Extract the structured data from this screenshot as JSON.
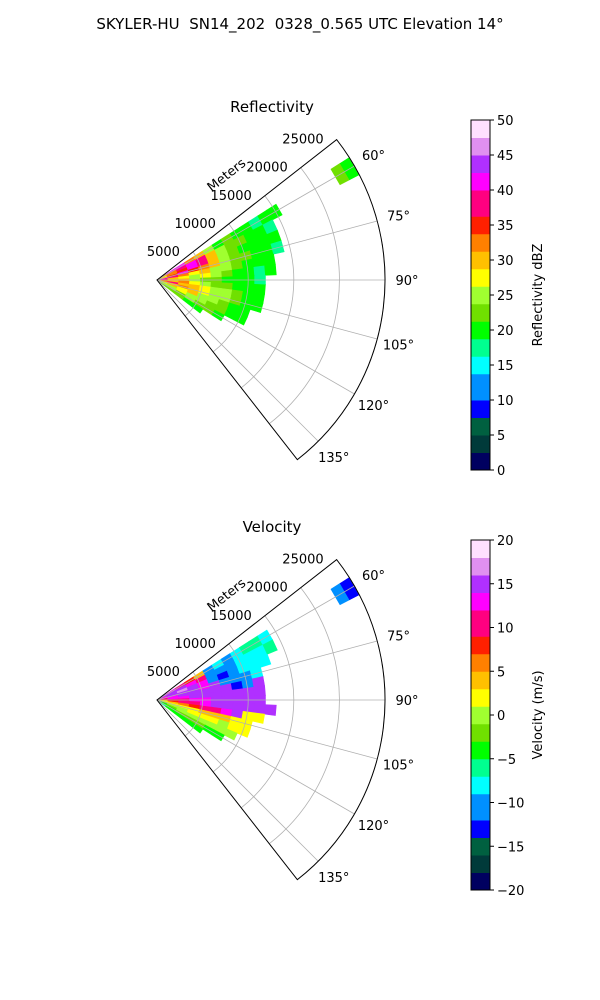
{
  "figure_title": "SKYLER-HU  SN14_202  0328_0.565 UTC Elevation 14°",
  "chart_data": [
    {
      "type": "heatmap",
      "subtype": "polar-sector (radar PPI)",
      "title": "Reflectivity",
      "radial_label": "Meters",
      "radial_ticks": [
        5000,
        10000,
        15000,
        20000,
        25000
      ],
      "radial_tick_labels": [
        "5000",
        "10000",
        "15000",
        "20000",
        "25000"
      ],
      "radial_range": [
        0,
        25000
      ],
      "angle_range_deg": [
        52,
        142
      ],
      "angle_ticks_deg": [
        60,
        75,
        90,
        105,
        120,
        135
      ],
      "angle_tick_labels": [
        "60°",
        "75°",
        "90°",
        "105°",
        "120°",
        "135°"
      ],
      "grid": true,
      "colorbar": {
        "label": "Reflectivity dBZ",
        "range": [
          0,
          50
        ],
        "ticks": [
          0,
          5,
          10,
          15,
          20,
          25,
          30,
          35,
          40,
          45,
          50
        ],
        "tick_labels": [
          "0",
          "5",
          "10",
          "15",
          "20",
          "25",
          "30",
          "35",
          "40",
          "45",
          "50"
        ],
        "position": "right"
      },
      "colorscale": [
        "#000060",
        "#003a3a",
        "#006040",
        "#0000ff",
        "#0090ff",
        "#00ffff",
        "#00ff90",
        "#00ff00",
        "#70e000",
        "#a0ff30",
        "#ffff00",
        "#ffc000",
        "#ff8000",
        "#ff2000",
        "#ff0080",
        "#ff00ff",
        "#b030ff",
        "#e090f0",
        "#ffe0ff"
      ],
      "rays": [
        {
          "angle": 60,
          "values": [
            35,
            40,
            40,
            32,
            30,
            25,
            20,
            22,
            20,
            20,
            18,
            20,
            20,
            null,
            null,
            null,
            null,
            null,
            null,
            22,
            20
          ]
        },
        {
          "angle": 65,
          "values": [
            30,
            33,
            38,
            40,
            37,
            30,
            25,
            22,
            22,
            20,
            20,
            18,
            null,
            null,
            null,
            null,
            null,
            null,
            null,
            null,
            null
          ]
        },
        {
          "angle": 70,
          "values": [
            28,
            34,
            36,
            40,
            38,
            30,
            24,
            22,
            20,
            20,
            20,
            20,
            null,
            null,
            null,
            null,
            null,
            null,
            null,
            null,
            null
          ]
        },
        {
          "angle": 75,
          "values": [
            33,
            36,
            40,
            36,
            34,
            30,
            26,
            22,
            22,
            20,
            20,
            18,
            null,
            null,
            null,
            null,
            null,
            null,
            null,
            null,
            null
          ]
        },
        {
          "angle": 80,
          "values": [
            35,
            38,
            33,
            28,
            30,
            24,
            24,
            22,
            20,
            20,
            20,
            null,
            null,
            null,
            null,
            null,
            null,
            null,
            null,
            null,
            null
          ]
        },
        {
          "angle": 85,
          "values": [
            40,
            30,
            28,
            26,
            28,
            25,
            22,
            20,
            20,
            18,
            20,
            null,
            null,
            null,
            null,
            null,
            null,
            null,
            null,
            null,
            null
          ]
        },
        {
          "angle": 90,
          "values": [
            35,
            30,
            30,
            25,
            22,
            22,
            20,
            20,
            20,
            18,
            null,
            null,
            null,
            null,
            null,
            null,
            null,
            null,
            null,
            null,
            null
          ]
        },
        {
          "angle": 95,
          "values": [
            34,
            30,
            32,
            28,
            25,
            22,
            22,
            20,
            20,
            20,
            null,
            null,
            null,
            null,
            null,
            null,
            null,
            null,
            null,
            null,
            null
          ]
        },
        {
          "angle": 100,
          "values": [
            32,
            38,
            30,
            30,
            28,
            25,
            24,
            22,
            20,
            20,
            null,
            null,
            null,
            null,
            null,
            null,
            null,
            null,
            null,
            null,
            null
          ]
        },
        {
          "angle": 105,
          "values": [
            30,
            30,
            34,
            30,
            28,
            26,
            24,
            22,
            20,
            20,
            null,
            null,
            null,
            null,
            null,
            null,
            null,
            null,
            null,
            null,
            null
          ]
        },
        {
          "angle": 110,
          "values": [
            28,
            30,
            28,
            30,
            26,
            24,
            22,
            20,
            20,
            null,
            null,
            null,
            null,
            null,
            null,
            null,
            null,
            null,
            null,
            null,
            null
          ]
        },
        {
          "angle": 115,
          "values": [
            26,
            26,
            28,
            26,
            24,
            22,
            22,
            20,
            20,
            null,
            null,
            null,
            null,
            null,
            null,
            null,
            null,
            null,
            null,
            null,
            null
          ]
        },
        {
          "angle": 120,
          "values": [
            24,
            24,
            22,
            24,
            22,
            22,
            20,
            null,
            null,
            null,
            null,
            null,
            null,
            null,
            null,
            null,
            null,
            null,
            null,
            null,
            null
          ]
        },
        {
          "angle": 125,
          "values": [
            22,
            22,
            22,
            20,
            20,
            null,
            null,
            null,
            null,
            null,
            null,
            null,
            null,
            null,
            null,
            null,
            null,
            null,
            null,
            null,
            null
          ]
        }
      ]
    },
    {
      "type": "heatmap",
      "subtype": "polar-sector (radar PPI)",
      "title": "Velocity",
      "radial_label": "Meters",
      "radial_ticks": [
        5000,
        10000,
        15000,
        20000,
        25000
      ],
      "radial_tick_labels": [
        "5000",
        "10000",
        "15000",
        "20000",
        "25000"
      ],
      "radial_range": [
        0,
        25000
      ],
      "angle_range_deg": [
        52,
        142
      ],
      "angle_ticks_deg": [
        60,
        75,
        90,
        105,
        120,
        135
      ],
      "angle_tick_labels": [
        "60°",
        "75°",
        "90°",
        "105°",
        "120°",
        "135°"
      ],
      "grid": true,
      "colorbar": {
        "label": "Velocity (m/s)",
        "range": [
          -20,
          20
        ],
        "ticks": [
          -20,
          -15,
          -10,
          -5,
          0,
          5,
          10,
          15,
          20
        ],
        "tick_labels": [
          "−20",
          "−15",
          "−10",
          "−5",
          "0",
          "5",
          "10",
          "15",
          "20"
        ],
        "position": "right"
      },
      "colorscale": [
        "#000060",
        "#003a3a",
        "#006040",
        "#0000ff",
        "#0090ff",
        "#00ffff",
        "#00ff90",
        "#00ff00",
        "#70e000",
        "#a0ff30",
        "#ffff00",
        "#ffc000",
        "#ff8000",
        "#ff2000",
        "#ff0080",
        "#ff00ff",
        "#b030ff",
        "#e090f0",
        "#ffe0ff"
      ],
      "rays": [
        {
          "angle": 60,
          "values": [
            14,
            12,
            10,
            8,
            5,
            -10,
            -9,
            -10,
            -8,
            -6,
            -7,
            -8,
            null,
            null,
            null,
            null,
            null,
            null,
            null,
            -11,
            -12
          ]
        },
        {
          "angle": 65,
          "values": [
            14,
            15,
            14,
            12,
            10,
            -10,
            -11,
            -10,
            -8,
            -8,
            -8,
            -6,
            null,
            null,
            null,
            null,
            null,
            null,
            null,
            null,
            null
          ]
        },
        {
          "angle": 70,
          "values": [
            13,
            15,
            16,
            14,
            12,
            -11,
            -12,
            -10,
            -9,
            -8,
            -8,
            null,
            null,
            null,
            null,
            null,
            null,
            null,
            null,
            null,
            null
          ]
        },
        {
          "angle": 75,
          "values": [
            12,
            14,
            15,
            14,
            13,
            15,
            -10,
            -10,
            -11,
            -9,
            null,
            null,
            null,
            null,
            null,
            null,
            null,
            null,
            null,
            null,
            null
          ]
        },
        {
          "angle": 80,
          "values": [
            11,
            13,
            14,
            15,
            15,
            14,
            15,
            -12,
            -11,
            15,
            null,
            null,
            null,
            null,
            null,
            null,
            null,
            null,
            null,
            null,
            null
          ]
        },
        {
          "angle": 85,
          "values": [
            10,
            12,
            13,
            14,
            15,
            15,
            14,
            15,
            15,
            14,
            null,
            null,
            null,
            null,
            null,
            null,
            null,
            null,
            null,
            null,
            null
          ]
        },
        {
          "angle": 90,
          "values": [
            6,
            10,
            11,
            12,
            13,
            14,
            15,
            14,
            15,
            15,
            null,
            null,
            null,
            null,
            null,
            null,
            null,
            null,
            null,
            null,
            null
          ]
        },
        {
          "angle": 95,
          "values": [
            4,
            8,
            10,
            11,
            12,
            14,
            15,
            15,
            15,
            15,
            14,
            null,
            null,
            null,
            null,
            null,
            null,
            null,
            null,
            null,
            null
          ]
        },
        {
          "angle": 100,
          "values": [
            2,
            4,
            6,
            8,
            10,
            11,
            13,
            14,
            3,
            2,
            null,
            null,
            null,
            null,
            null,
            null,
            null,
            null,
            null,
            null,
            null
          ]
        },
        {
          "angle": 105,
          "values": [
            0,
            2,
            3,
            3,
            4,
            5,
            4,
            3,
            3,
            null,
            null,
            null,
            null,
            null,
            null,
            null,
            null,
            null,
            null,
            null,
            null
          ]
        },
        {
          "angle": 110,
          "values": [
            -2,
            0,
            1,
            3,
            3,
            2,
            1,
            2,
            2,
            null,
            null,
            null,
            null,
            null,
            null,
            null,
            null,
            null,
            null,
            null,
            null
          ]
        },
        {
          "angle": 115,
          "values": [
            -4,
            -2,
            -1,
            0,
            1,
            0,
            -1,
            -1,
            null,
            null,
            null,
            null,
            null,
            null,
            null,
            null,
            null,
            null,
            null,
            null,
            null
          ]
        },
        {
          "angle": 120,
          "values": [
            -5,
            -4,
            -3,
            -2,
            -3,
            -4,
            -4,
            null,
            null,
            null,
            null,
            null,
            null,
            null,
            null,
            null,
            null,
            null,
            null,
            null,
            null
          ]
        },
        {
          "angle": 125,
          "values": [
            -6,
            -5,
            -4,
            -5,
            -5,
            null,
            null,
            null,
            null,
            null,
            null,
            null,
            null,
            null,
            null,
            null,
            null,
            null,
            null,
            null,
            null
          ]
        }
      ]
    }
  ]
}
